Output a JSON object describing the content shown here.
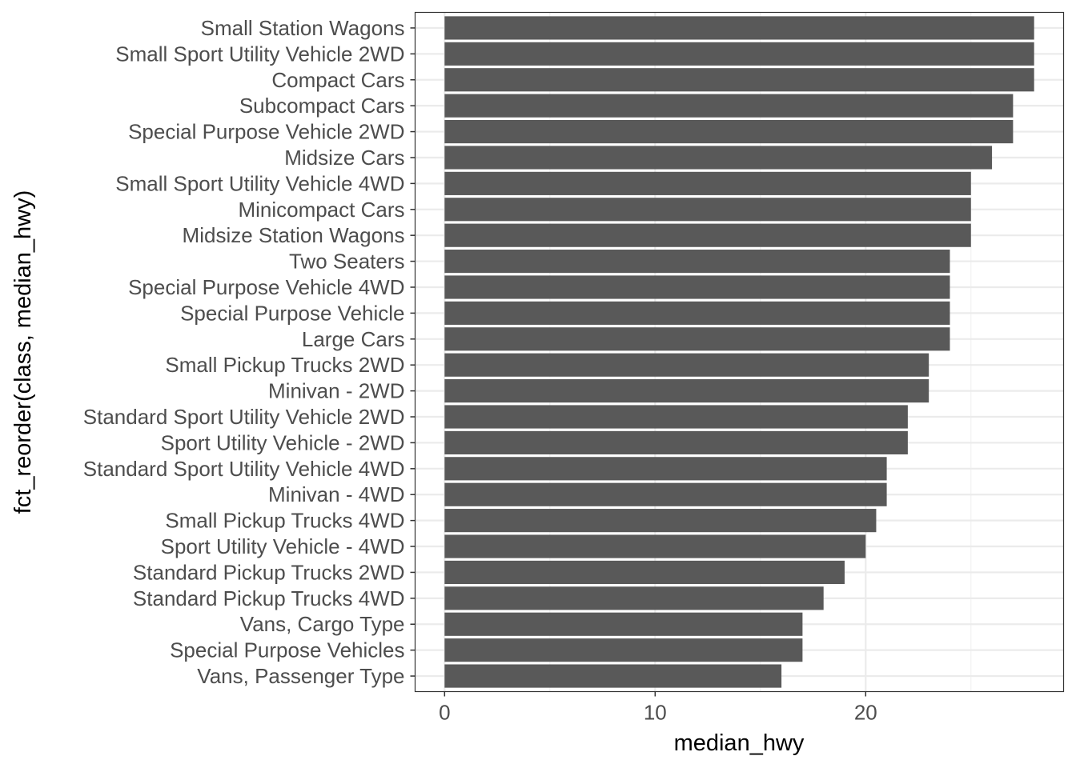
{
  "chart_data": {
    "type": "bar",
    "orientation": "horizontal",
    "title": "",
    "xlabel": "median_hwy",
    "ylabel": "fct_reorder(class, median_hwy)",
    "xlim": [
      -1.4,
      29.4
    ],
    "xticks": [
      0,
      10,
      20
    ],
    "xticks_minor": [
      5,
      15,
      25
    ],
    "grid": true,
    "bar_color": "#595959",
    "categories": [
      "Small Station Wagons",
      "Small Sport Utility Vehicle 2WD",
      "Compact Cars",
      "Subcompact Cars",
      "Special Purpose Vehicle 2WD",
      "Midsize Cars",
      "Small Sport Utility Vehicle 4WD",
      "Minicompact Cars",
      "Midsize Station Wagons",
      "Two Seaters",
      "Special Purpose Vehicle 4WD",
      "Special Purpose Vehicle",
      "Large Cars",
      "Small Pickup Trucks 2WD",
      "Minivan - 2WD",
      "Standard Sport Utility Vehicle 2WD",
      "Sport Utility Vehicle - 2WD",
      "Standard Sport Utility Vehicle 4WD",
      "Minivan - 4WD",
      "Small Pickup Trucks 4WD",
      "Sport Utility Vehicle - 4WD",
      "Standard Pickup Trucks 2WD",
      "Standard Pickup Trucks 4WD",
      "Vans, Cargo Type",
      "Special Purpose Vehicles",
      "Vans, Passenger Type"
    ],
    "values": [
      28,
      28,
      28,
      27,
      27,
      26,
      25,
      25,
      25,
      24,
      24,
      24,
      24,
      23,
      23,
      22,
      22,
      21,
      21,
      20.5,
      20,
      19,
      18,
      17,
      17,
      16
    ]
  }
}
